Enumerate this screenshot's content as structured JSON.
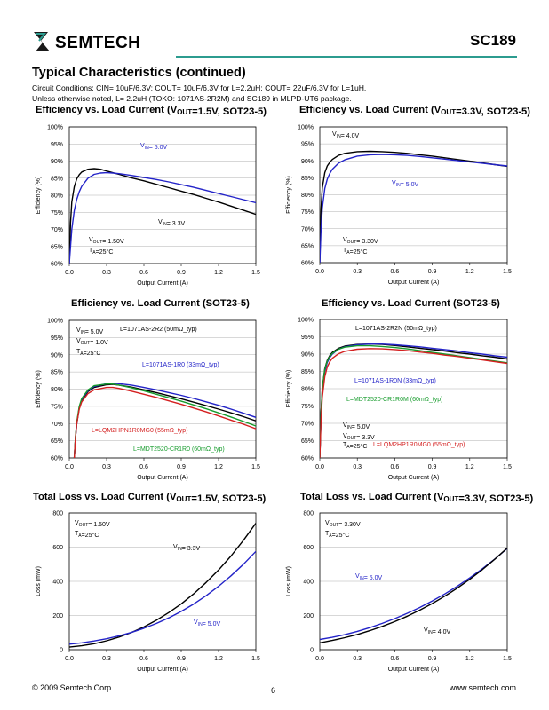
{
  "header": {
    "company": "SEMTECH",
    "part_number": "SC189"
  },
  "section_title": "Typical Characteristics (continued)",
  "conditions": {
    "line1": "Circuit Conditions: CIN= 10uF/6.3V; COUT= 10uF/6.3V for L=2.2uH; COUT= 22uF/6.3V for L=1uH.",
    "line2": "Unless otherwise noted, L= 2.2uH (TOKO: 1071AS-2R2M) and SC189 in MLPD-UT6 package."
  },
  "footer": {
    "copyright": "© 2009 Semtech Corp.",
    "page": "6",
    "website": "www.semtech.com"
  },
  "colors": {
    "black_curve": "#000000",
    "blue_curve": "#2323c8",
    "red_curve": "#d42020",
    "green_curve": "#159b2b",
    "accent_line": "#2c9c8f",
    "grid": "#b0b0b0"
  },
  "chart_data": [
    {
      "id": "c1",
      "type": "line",
      "title": "Efficiency vs. Load Current (VOUT=1.5V, SOT23-5)",
      "xlabel": "Output Current (A)",
      "ylabel": "Efficiency (%)",
      "xlim": [
        0,
        1.5
      ],
      "ylim": [
        60,
        100
      ],
      "xticks": [
        "0.0",
        "0.3",
        "0.6",
        "0.9",
        "1.2",
        "1.5"
      ],
      "yticks": [
        "60%",
        "65%",
        "70%",
        "75%",
        "80%",
        "85%",
        "90%",
        "95%",
        "100%"
      ],
      "grid": "horizontal",
      "series": [
        {
          "name": "VIN= 3.3V",
          "color": "#000000",
          "x": [
            0.0,
            0.01,
            0.02,
            0.04,
            0.06,
            0.08,
            0.1,
            0.15,
            0.2,
            0.25,
            0.3,
            0.4,
            0.5,
            0.6,
            0.7,
            0.8,
            0.9,
            1.0,
            1.1,
            1.2,
            1.3,
            1.4,
            1.5
          ],
          "y": [
            60,
            72,
            78,
            82.5,
            84.8,
            86,
            86.8,
            87.6,
            87.8,
            87.6,
            87.1,
            86.1,
            85.1,
            84.2,
            83.2,
            82.2,
            81.2,
            80.2,
            79.1,
            78,
            76.8,
            75.6,
            74.4
          ]
        },
        {
          "name": "VIN= 5.0V",
          "color": "#2323c8",
          "x": [
            0.0,
            0.01,
            0.02,
            0.04,
            0.06,
            0.08,
            0.1,
            0.15,
            0.2,
            0.25,
            0.3,
            0.35,
            0.4,
            0.5,
            0.6,
            0.7,
            0.8,
            0.9,
            1.0,
            1.1,
            1.2,
            1.3,
            1.4,
            1.5
          ],
          "y": [
            60,
            65,
            70,
            75.5,
            78.8,
            81,
            82.6,
            85,
            86.1,
            86.5,
            86.6,
            86.5,
            86.3,
            85.8,
            85.2,
            84.6,
            83.9,
            83.1,
            82.3,
            81.4,
            80.5,
            79.6,
            78.7,
            77.8
          ]
        }
      ],
      "annotations": [
        "VIN= 5.0V",
        "VIN= 3.3V",
        "VOUT= 1.50V",
        "TA=25°C"
      ]
    },
    {
      "id": "c2",
      "type": "line",
      "title": "Efficiency vs. Load Current (VOUT=3.3V, SOT23-5)",
      "xlabel": "Output Current (A)",
      "ylabel": "Efficiency (%)",
      "xlim": [
        0,
        1.5
      ],
      "ylim": [
        60,
        100
      ],
      "xticks": [
        "0.0",
        "0.3",
        "0.6",
        "0.9",
        "1.2",
        "1.5"
      ],
      "yticks": [
        "60%",
        "65%",
        "70%",
        "75%",
        "80%",
        "85%",
        "90%",
        "95%",
        "100%"
      ],
      "grid": "horizontal",
      "series": [
        {
          "name": "VIN= 4.0V",
          "color": "#000000",
          "x": [
            0.0,
            0.01,
            0.02,
            0.04,
            0.06,
            0.08,
            0.1,
            0.15,
            0.2,
            0.3,
            0.4,
            0.5,
            0.6,
            0.7,
            0.8,
            0.9,
            1.0,
            1.1,
            1.2,
            1.3,
            1.4,
            1.5
          ],
          "y": [
            60,
            76,
            82,
            86.5,
            88.5,
            89.6,
            90.4,
            91.6,
            92.2,
            92.7,
            92.8,
            92.7,
            92.5,
            92.2,
            91.8,
            91.4,
            90.9,
            90.4,
            89.9,
            89.4,
            88.9,
            88.4
          ]
        },
        {
          "name": "VIN= 5.0V",
          "color": "#2323c8",
          "x": [
            0.0,
            0.01,
            0.02,
            0.04,
            0.06,
            0.08,
            0.1,
            0.15,
            0.2,
            0.3,
            0.4,
            0.5,
            0.6,
            0.7,
            0.8,
            0.9,
            1.0,
            1.1,
            1.2,
            1.3,
            1.4,
            1.5
          ],
          "y": [
            60,
            70,
            76,
            81.8,
            84.6,
            86.3,
            87.5,
            89.3,
            90.3,
            91.4,
            91.8,
            91.9,
            91.8,
            91.6,
            91.3,
            90.9,
            90.5,
            90.1,
            89.7,
            89.3,
            88.9,
            88.5
          ]
        }
      ],
      "annotations": [
        "VIN= 4.0V",
        "VIN= 5.0V",
        "VOUT= 3.30V",
        "TA=25°C"
      ]
    },
    {
      "id": "c3",
      "type": "line",
      "title": "Efficiency vs. Load Current (SOT23-5)",
      "xlabel": "Output Current (A)",
      "ylabel": "Efficiency (%)",
      "xlim": [
        0,
        1.5
      ],
      "ylim": [
        60,
        100
      ],
      "xticks": [
        "0.0",
        "0.3",
        "0.6",
        "0.9",
        "1.2",
        "1.5"
      ],
      "yticks": [
        "60%",
        "65%",
        "70%",
        "75%",
        "80%",
        "85%",
        "90%",
        "95%",
        "100%"
      ],
      "grid": "horizontal",
      "series": [
        {
          "name": "L=1071AS-2R2 (50mΩ_typ)",
          "color": "#000000",
          "x": [
            0.04,
            0.05,
            0.06,
            0.08,
            0.1,
            0.15,
            0.2,
            0.3,
            0.35,
            0.4,
            0.5,
            0.6,
            0.7,
            0.8,
            0.9,
            1.0,
            1.1,
            1.2,
            1.3,
            1.4,
            1.5
          ],
          "y": [
            60,
            66,
            70,
            74.5,
            76.8,
            79.3,
            80.5,
            81.3,
            81.4,
            81.2,
            80.6,
            79.8,
            79,
            78.1,
            77.2,
            76.2,
            75.2,
            74.2,
            73.1,
            72,
            70.8
          ]
        },
        {
          "name": "L=1071AS-1R0 (33mΩ_typ)",
          "color": "#2323c8",
          "x": [
            0.04,
            0.05,
            0.06,
            0.08,
            0.1,
            0.15,
            0.2,
            0.3,
            0.35,
            0.4,
            0.5,
            0.6,
            0.7,
            0.8,
            0.9,
            1.0,
            1.1,
            1.2,
            1.3,
            1.4,
            1.5
          ],
          "y": [
            60,
            66,
            70,
            74.7,
            77,
            79.6,
            80.8,
            81.6,
            81.7,
            81.6,
            81.2,
            80.5,
            79.8,
            79,
            78.2,
            77.3,
            76.3,
            75.3,
            74.2,
            73,
            71.8
          ]
        },
        {
          "name": "L=MDT2520-CR1R0 (60mΩ_typ)",
          "color": "#159b2b",
          "x": [
            0.04,
            0.05,
            0.06,
            0.08,
            0.1,
            0.15,
            0.2,
            0.3,
            0.35,
            0.4,
            0.5,
            0.6,
            0.7,
            0.8,
            0.9,
            1.0,
            1.1,
            1.2,
            1.3,
            1.4,
            1.5
          ],
          "y": [
            60,
            66.5,
            70.5,
            75,
            77.3,
            79.8,
            81,
            81.5,
            81.5,
            81.2,
            80.4,
            79.5,
            78.5,
            77.5,
            76.5,
            75.4,
            74.3,
            73.1,
            71.9,
            70.6,
            69.3
          ]
        },
        {
          "name": "L=LQM2HPN1R0MG0 (55mΩ_typ)",
          "color": "#d42020",
          "x": [
            0.04,
            0.05,
            0.06,
            0.08,
            0.1,
            0.15,
            0.2,
            0.3,
            0.35,
            0.4,
            0.5,
            0.6,
            0.7,
            0.8,
            0.9,
            1.0,
            1.1,
            1.2,
            1.3,
            1.4,
            1.5
          ],
          "y": [
            60,
            66,
            70,
            74.2,
            76.3,
            78.7,
            79.8,
            80.5,
            80.5,
            80.2,
            79.4,
            78.5,
            77.6,
            76.6,
            75.6,
            74.5,
            73.4,
            72.2,
            71,
            69.8,
            68.5
          ]
        }
      ],
      "annotations": [
        "VIN= 5.0V",
        "VOUT= 1.0V",
        "TA=25°C",
        "L=1071AS-2R2 (50mΩ_typ)",
        "L=1071AS-1R0 (33mΩ_typ)",
        "L=LQM2HPN1R0MG0 (55mΩ_typ)",
        "L=MDT2520-CR1R0 (60mΩ_typ)"
      ]
    },
    {
      "id": "c4",
      "type": "line",
      "title": "Efficiency vs. Load Current (SOT23-5)",
      "xlabel": "Output Current (A)",
      "ylabel": "Efficiency (%)",
      "xlim": [
        0,
        1.5
      ],
      "ylim": [
        60,
        100
      ],
      "xticks": [
        "0.0",
        "0.3",
        "0.6",
        "0.9",
        "1.2",
        "1.5"
      ],
      "yticks": [
        "60%",
        "65%",
        "70%",
        "75%",
        "80%",
        "85%",
        "90%",
        "95%",
        "100%"
      ],
      "grid": "horizontal",
      "series": [
        {
          "name": "L=1071AS-2R2N (50mΩ_typ)",
          "color": "#000000",
          "x": [
            0.0,
            0.01,
            0.02,
            0.04,
            0.06,
            0.08,
            0.1,
            0.15,
            0.2,
            0.3,
            0.4,
            0.5,
            0.6,
            0.7,
            0.8,
            0.9,
            1.0,
            1.1,
            1.2,
            1.3,
            1.4,
            1.5
          ],
          "y": [
            60,
            73,
            80,
            85.8,
            88.2,
            89.6,
            90.5,
            91.7,
            92.3,
            92.8,
            92.9,
            92.8,
            92.5,
            92.1,
            91.7,
            91.3,
            90.9,
            90.4,
            90,
            89.5,
            89.1,
            88.6
          ]
        },
        {
          "name": "L=1071AS-1R0N (33mΩ_typ)",
          "color": "#2323c8",
          "x": [
            0.0,
            0.01,
            0.02,
            0.04,
            0.06,
            0.08,
            0.1,
            0.15,
            0.2,
            0.3,
            0.4,
            0.5,
            0.6,
            0.7,
            0.8,
            0.9,
            1.0,
            1.1,
            1.2,
            1.3,
            1.4,
            1.5
          ],
          "y": [
            60,
            72,
            79,
            85,
            87.6,
            89,
            90,
            91.4,
            92.1,
            92.7,
            92.9,
            92.9,
            92.7,
            92.4,
            92.1,
            91.7,
            91.3,
            90.9,
            90.4,
            90,
            89.5,
            89.1
          ]
        },
        {
          "name": "L=MDT2520-CR1R0M (60mΩ_typ)",
          "color": "#159b2b",
          "x": [
            0.0,
            0.01,
            0.02,
            0.04,
            0.06,
            0.08,
            0.1,
            0.15,
            0.2,
            0.3,
            0.4,
            0.5,
            0.6,
            0.7,
            0.8,
            0.9,
            1.0,
            1.1,
            1.2,
            1.3,
            1.4,
            1.5
          ],
          "y": [
            60,
            73,
            80,
            85.6,
            88,
            89.3,
            90.2,
            91.4,
            92,
            92.4,
            92.4,
            92.2,
            91.9,
            91.5,
            91,
            90.5,
            90,
            89.5,
            89,
            88.5,
            88,
            87.5
          ]
        },
        {
          "name": "L=LQM2HP1R0MG0 (55mΩ_typ)",
          "color": "#d42020",
          "x": [
            0.0,
            0.01,
            0.02,
            0.04,
            0.06,
            0.08,
            0.1,
            0.15,
            0.2,
            0.3,
            0.4,
            0.5,
            0.6,
            0.7,
            0.8,
            0.9,
            1.0,
            1.1,
            1.2,
            1.3,
            1.4,
            1.5
          ],
          "y": [
            60,
            71,
            77.5,
            83.5,
            86.3,
            87.8,
            88.8,
            90.1,
            90.8,
            91.4,
            91.6,
            91.5,
            91.3,
            91,
            90.6,
            90.2,
            89.7,
            89.3,
            88.8,
            88.3,
            87.8,
            87.3
          ]
        }
      ],
      "annotations": [
        "L=1071AS-2R2N (50mΩ_typ)",
        "L=1071AS-1R0N (33mΩ_typ)",
        "L=MDT2520-CR1R0M (60mΩ_typ)",
        "VIN= 5.0V",
        "VOUT= 3.3V",
        "TA=25°C",
        "L=LQM2HP1R0MG0 (55mΩ_typ)"
      ]
    },
    {
      "id": "c5",
      "type": "line",
      "title": "Total Loss vs. Load Current (VOUT=1.5V, SOT23-5)",
      "xlabel": "Output Current (A)",
      "ylabel": "Loss (mW)",
      "xlim": [
        0,
        1.5
      ],
      "ylim": [
        0,
        800
      ],
      "xticks": [
        "0.0",
        "0.3",
        "0.6",
        "0.9",
        "1.2",
        "1.5"
      ],
      "yticks": [
        "0",
        "200",
        "400",
        "600",
        "800"
      ],
      "grid": "horizontal",
      "series": [
        {
          "name": "VIN= 3.3V",
          "color": "#000000",
          "x": [
            0.0,
            0.1,
            0.2,
            0.3,
            0.4,
            0.5,
            0.6,
            0.7,
            0.8,
            0.9,
            1.0,
            1.1,
            1.2,
            1.3,
            1.4,
            1.5
          ],
          "y": [
            15,
            23,
            35,
            52,
            74,
            101,
            133,
            172,
            217,
            268,
            327,
            393,
            466,
            548,
            640,
            740
          ]
        },
        {
          "name": "VIN= 5.0V",
          "color": "#2323c8",
          "x": [
            0.0,
            0.1,
            0.2,
            0.3,
            0.4,
            0.5,
            0.6,
            0.7,
            0.8,
            0.9,
            1.0,
            1.1,
            1.2,
            1.3,
            1.4,
            1.5
          ],
          "y": [
            32,
            40,
            51,
            64,
            81,
            101,
            125,
            153,
            186,
            224,
            267,
            316,
            371,
            432,
            500,
            575
          ]
        }
      ],
      "annotations": [
        "VOUT= 1.50V",
        "TA=25°C",
        "VIN= 3.3V",
        "VIN= 5.0V"
      ]
    },
    {
      "id": "c6",
      "type": "line",
      "title": "Total Loss vs. Load Current (VOUT=3.3V, SOT23-5)",
      "xlabel": "Output Current (A)",
      "ylabel": "Loss (mW)",
      "xlim": [
        0,
        1.5
      ],
      "ylim": [
        0,
        800
      ],
      "xticks": [
        "0.0",
        "0.3",
        "0.6",
        "0.9",
        "1.2",
        "1.5"
      ],
      "yticks": [
        "0",
        "200",
        "400",
        "600",
        "800"
      ],
      "grid": "horizontal",
      "series": [
        {
          "name": "VIN= 5.0V",
          "color": "#2323c8",
          "x": [
            0.0,
            0.1,
            0.2,
            0.3,
            0.4,
            0.5,
            0.6,
            0.7,
            0.8,
            0.9,
            1.0,
            1.1,
            1.2,
            1.3,
            1.4,
            1.5
          ],
          "y": [
            60,
            72,
            88,
            107,
            129,
            154,
            182,
            213,
            247,
            285,
            326,
            371,
            420,
            473,
            530,
            592
          ]
        },
        {
          "name": "VIN= 4.0V",
          "color": "#000000",
          "x": [
            0.0,
            0.1,
            0.2,
            0.3,
            0.4,
            0.5,
            0.6,
            0.7,
            0.8,
            0.9,
            1.0,
            1.1,
            1.2,
            1.3,
            1.4,
            1.5
          ],
          "y": [
            40,
            54,
            70,
            89,
            111,
            136,
            164,
            196,
            231,
            270,
            313,
            360,
            412,
            468,
            529,
            595
          ]
        }
      ],
      "annotations": [
        "VOUT= 3.30V",
        "TA=25°C",
        "VIN= 5.0V",
        "VIN= 4.0V"
      ]
    }
  ]
}
